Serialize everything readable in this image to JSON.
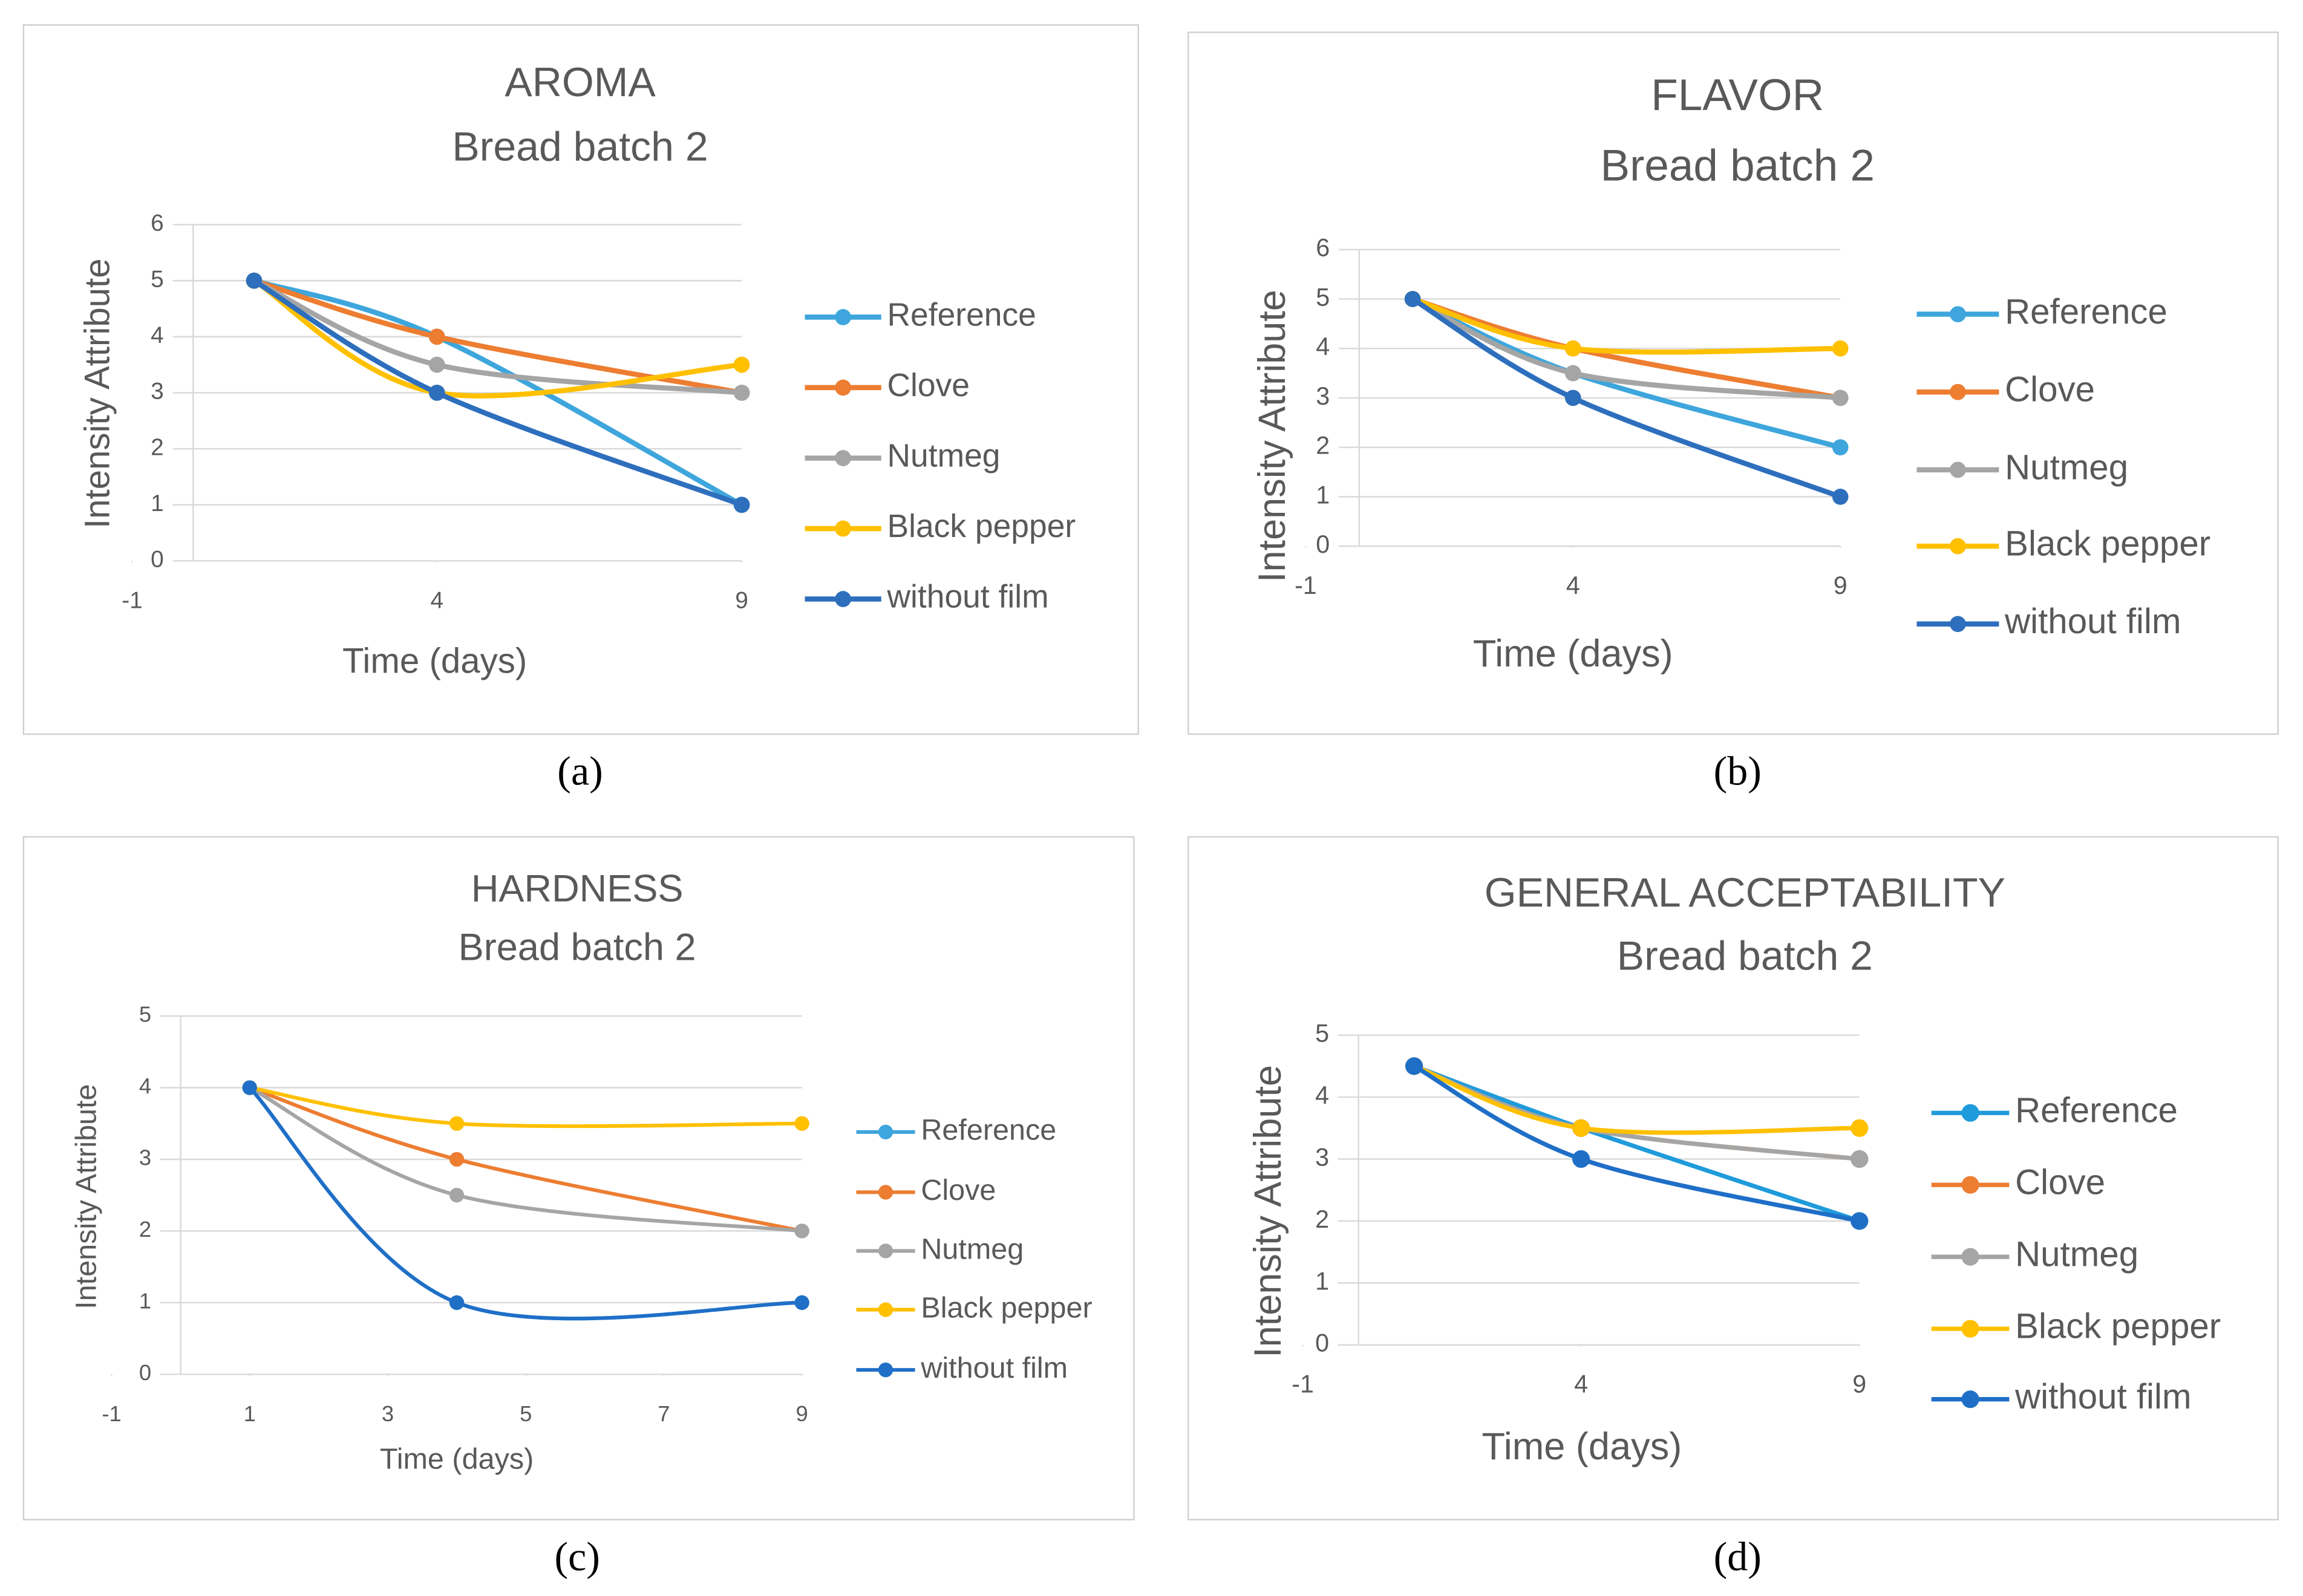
{
  "chart_data": [
    {
      "type": "line",
      "label": "(a)",
      "title": "AROMA",
      "subtitle": "Bread batch 2",
      "xlabel": "Time (days)",
      "ylabel": "Intensity Attribute",
      "x": [
        1,
        4,
        9
      ],
      "xlim": [
        -1,
        9
      ],
      "xticks": [
        -1,
        4,
        9
      ],
      "ylim": [
        0,
        6
      ],
      "yticks": [
        0,
        1,
        2,
        3,
        4,
        5,
        6
      ],
      "grid": true,
      "smooth": true,
      "legend": "right",
      "series": [
        {
          "name": "Reference",
          "color": "#3ea6dc",
          "values": [
            5,
            4,
            1
          ]
        },
        {
          "name": "Clove",
          "color": "#ed7d31",
          "values": [
            5,
            4,
            3
          ]
        },
        {
          "name": "Nutmeg",
          "color": "#a5a5a5",
          "values": [
            5,
            3.5,
            3
          ]
        },
        {
          "name": "Black pepper",
          "color": "#ffc000",
          "values": [
            5,
            3,
            3.5
          ]
        },
        {
          "name": "without film",
          "color": "#2e6fbd",
          "values": [
            5,
            3,
            1
          ]
        }
      ]
    },
    {
      "type": "line",
      "label": "(b)",
      "title": "FLAVOR",
      "subtitle": "Bread batch 2",
      "xlabel": "Time (days)",
      "ylabel": "Intensity Attribute",
      "x": [
        1,
        4,
        9
      ],
      "xlim": [
        -1,
        9
      ],
      "xticks": [
        -1,
        4,
        9
      ],
      "ylim": [
        0,
        6
      ],
      "yticks": [
        0,
        1,
        2,
        3,
        4,
        5,
        6
      ],
      "grid": true,
      "smooth": true,
      "legend": "right",
      "series": [
        {
          "name": "Reference",
          "color": "#3ea6dc",
          "values": [
            5,
            3.5,
            2
          ]
        },
        {
          "name": "Clove",
          "color": "#ed7d31",
          "values": [
            5,
            4,
            3
          ]
        },
        {
          "name": "Nutmeg",
          "color": "#a5a5a5",
          "values": [
            5,
            3.5,
            3
          ]
        },
        {
          "name": "Black pepper",
          "color": "#ffc000",
          "values": [
            5,
            4,
            4
          ]
        },
        {
          "name": "without film",
          "color": "#2e6fbd",
          "values": [
            5,
            3,
            1
          ]
        }
      ]
    },
    {
      "type": "line",
      "label": "(c)",
      "title": "HARDNESS",
      "subtitle": "Bread batch 2",
      "xlabel": "Time (days)",
      "ylabel": "Intensity Attribute",
      "x": [
        1,
        4,
        9
      ],
      "xlim": [
        -1,
        9
      ],
      "xticks": [
        -1,
        1,
        3,
        5,
        7,
        9
      ],
      "ylim": [
        0,
        5
      ],
      "yticks": [
        0,
        1,
        2,
        3,
        4,
        5
      ],
      "grid": true,
      "smooth": true,
      "legend": "right",
      "series": [
        {
          "name": "Reference",
          "color": "#3ea6dc",
          "values": [
            4,
            1,
            1
          ]
        },
        {
          "name": "Clove",
          "color": "#ed7d31",
          "values": [
            4,
            3,
            2
          ]
        },
        {
          "name": "Nutmeg",
          "color": "#a5a5a5",
          "values": [
            4,
            2.5,
            2
          ]
        },
        {
          "name": "Black pepper",
          "color": "#ffc000",
          "values": [
            4,
            3.5,
            3.5
          ]
        },
        {
          "name": "without film",
          "color": "#1f6fc7",
          "values": [
            4,
            1,
            1
          ]
        }
      ]
    },
    {
      "type": "line",
      "label": "(d)",
      "title": "GENERAL ACCEPTABILITY",
      "subtitle": "Bread batch 2",
      "xlabel": "Time (days)",
      "ylabel": "Intensity Attribute",
      "x": [
        1,
        4,
        9
      ],
      "xlim": [
        -1,
        9
      ],
      "xticks": [
        -1,
        4,
        9
      ],
      "ylim": [
        0,
        5
      ],
      "yticks": [
        0,
        1,
        2,
        3,
        4,
        5
      ],
      "grid": true,
      "smooth": true,
      "legend": "right",
      "series": [
        {
          "name": "Reference",
          "color": "#1f9bdb",
          "values": [
            4.5,
            3.5,
            2
          ]
        },
        {
          "name": "Clove",
          "color": "#ed7d31",
          "values": [
            4.5,
            3.5,
            3
          ]
        },
        {
          "name": "Nutmeg",
          "color": "#a5a5a5",
          "values": [
            4.5,
            3.5,
            3
          ]
        },
        {
          "name": "Black pepper",
          "color": "#ffc000",
          "values": [
            4.5,
            3.5,
            3.5
          ]
        },
        {
          "name": "without film",
          "color": "#1f6fc7",
          "values": [
            4.5,
            3,
            2
          ]
        }
      ]
    }
  ]
}
